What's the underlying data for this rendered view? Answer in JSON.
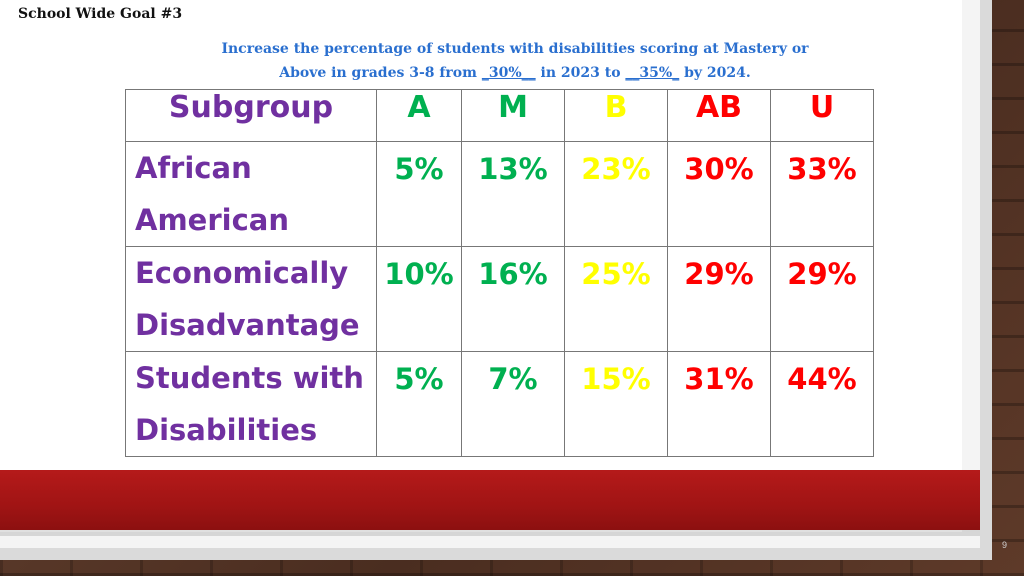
{
  "slide": {
    "goal_title": "School Wide Goal #3",
    "subtitle": {
      "line1": "Increase the percentage of students with disabilities scoring at Mastery or",
      "line2_pre": "Above in grades 3-8 from ",
      "from_value": "_30%__",
      "line2_mid": " in 2023 to ",
      "to_value": "__35%_",
      "line2_post": " by 2024."
    },
    "page_number": "9"
  },
  "colors": {
    "subgroup": "#7030a0",
    "A": "#00b050",
    "M": "#00b050",
    "B": "#ffff00",
    "AB": "#ff0000",
    "U": "#ff0000",
    "subtitle": "#2a6fcf",
    "band": "#b51a1a"
  },
  "table": {
    "headers": [
      "Subgroup",
      "A",
      "M",
      "B",
      "AB",
      "U"
    ],
    "rows": [
      {
        "label_line1": "African",
        "label_line2": "American",
        "values": [
          "5%",
          "13%",
          "23%",
          "30%",
          "33%"
        ]
      },
      {
        "label_line1": "Economically",
        "label_line2": "Disadvantage",
        "values": [
          "10%",
          "16%",
          "25%",
          "29%",
          "29%"
        ]
      },
      {
        "label_line1": "Students with",
        "label_line2": "Disabilities",
        "values": [
          "5%",
          "7%",
          "15%",
          "31%",
          "44%"
        ]
      }
    ]
  }
}
